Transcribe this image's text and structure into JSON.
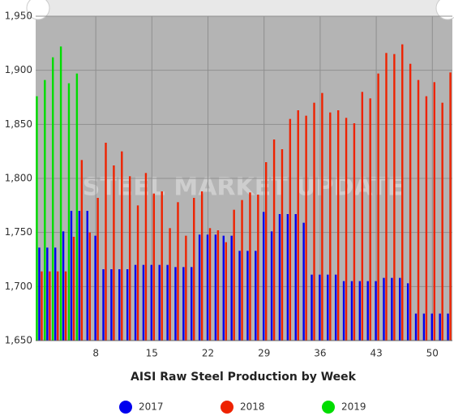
{
  "chart_data": {
    "type": "bar",
    "xlabel": "AISI Raw Steel Production by Week",
    "watermark": "STEEL MARKET UPDATE",
    "x": [
      1,
      2,
      3,
      4,
      5,
      6,
      7,
      8,
      9,
      10,
      11,
      12,
      13,
      14,
      15,
      16,
      17,
      18,
      19,
      20,
      21,
      22,
      23,
      24,
      25,
      26,
      27,
      28,
      29,
      30,
      31,
      32,
      33,
      34,
      35,
      36,
      37,
      38,
      39,
      40,
      41,
      42,
      43,
      44,
      45,
      46,
      47,
      48,
      49,
      50,
      51,
      52
    ],
    "series": [
      {
        "name": "2017",
        "color": "#0000ee",
        "values": [
          1736,
          1736,
          1736,
          1751,
          1770,
          1770,
          1770,
          1747,
          1716,
          1716,
          1716,
          1716,
          1720,
          1720,
          1720,
          1720,
          1720,
          1718,
          1718,
          1718,
          1748,
          1748,
          1748,
          1747,
          1747,
          1733,
          1733,
          1733,
          1769,
          1751,
          1767,
          1767,
          1767,
          1759,
          1711,
          1711,
          1711,
          1711,
          1705,
          1705,
          1705,
          1705,
          1705,
          1708,
          1708,
          1708,
          1703,
          1675,
          1675,
          1675,
          1675,
          1675
        ]
      },
      {
        "name": "2018",
        "color": "#ee2200",
        "values": [
          1714,
          1714,
          1714,
          1714,
          1746,
          1817,
          1750,
          1782,
          1833,
          1812,
          1825,
          1802,
          1775,
          1805,
          1786,
          1788,
          1754,
          1778,
          1747,
          1782,
          1788,
          1754,
          1752,
          1741,
          1771,
          1780,
          1787,
          1785,
          1815,
          1836,
          1827,
          1855,
          1863,
          1858,
          1870,
          1879,
          1861,
          1863,
          1856,
          1851,
          1880,
          1874,
          1897,
          1916,
          1915,
          1924,
          1906,
          1891,
          1876,
          1889,
          1870,
          1898
        ]
      },
      {
        "name": "2019",
        "color": "#00dd00",
        "values": [
          1876,
          1891,
          1912,
          1922,
          1888,
          1897,
          null,
          null,
          null,
          null,
          null,
          null,
          null,
          null,
          null,
          null,
          null,
          null,
          null,
          null,
          null,
          null,
          null,
          null,
          null,
          null,
          null,
          null,
          null,
          null,
          null,
          null,
          null,
          null,
          null,
          null,
          null,
          null,
          null,
          null,
          null,
          null,
          null,
          null,
          null,
          null,
          null,
          null,
          null,
          null,
          null,
          null
        ]
      }
    ],
    "xlim": [
      0.5,
      52.5
    ],
    "xticks": [
      8,
      15,
      22,
      29,
      36,
      43,
      50
    ],
    "ylim": [
      1650,
      1950
    ],
    "yticks": [
      {
        "value": 1650,
        "label": "1,650"
      },
      {
        "value": 1700,
        "label": "1,700"
      },
      {
        "value": 1750,
        "label": "1,750"
      },
      {
        "value": 1800,
        "label": "1,800"
      },
      {
        "value": 1850,
        "label": "1,850"
      },
      {
        "value": 1900,
        "label": "1,900"
      },
      {
        "value": 1950,
        "label": "1,950"
      }
    ],
    "grid": true,
    "legend": "bottom"
  }
}
